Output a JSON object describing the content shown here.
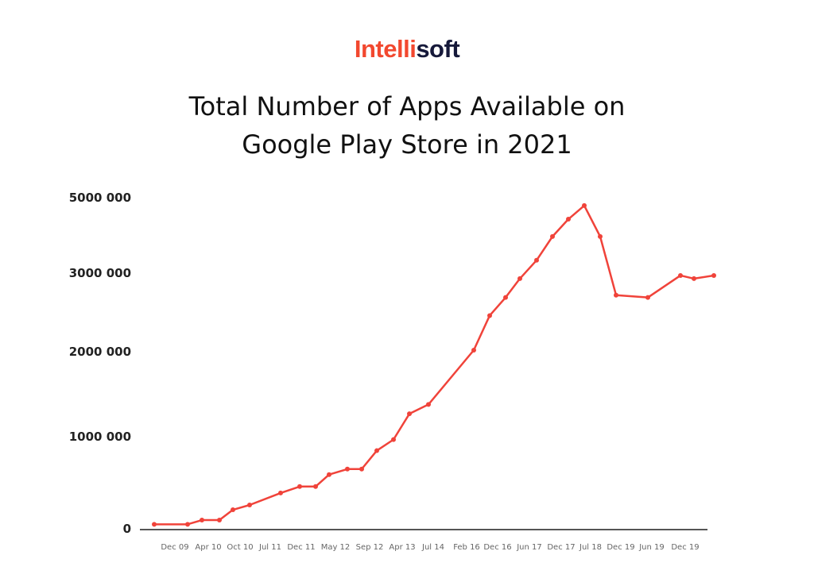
{
  "logo": {
    "part1": "Intelli",
    "part2": "soft",
    "colors": {
      "part1": "#f2482f",
      "part2": "#16193a"
    }
  },
  "chart_data": {
    "type": "line",
    "title": "Total Number of Apps Available on Google Play Store in 2021",
    "title_lines": [
      "Total Number of Apps Available on",
      "Google Play Store in 2021"
    ],
    "xlabel": "",
    "ylabel": "",
    "grid": false,
    "legend": "none",
    "line_color": "#f0433a",
    "x_tick_labels": [
      "Dec 09",
      "Apr 10",
      "Oct 10",
      "Jul 11",
      "Dec 11",
      "May 12",
      "Sep 12",
      "Apr 13",
      "Jul 14",
      "Feb 16",
      "Dec 16",
      "Jun 17",
      "Dec 17",
      "Jul 18",
      "Dec 19",
      "Jun 19",
      "Dec 19"
    ],
    "y_ticks": [
      {
        "value": 0,
        "label": "0"
      },
      {
        "value": 1000000,
        "label": "1000 000"
      },
      {
        "value": 2000000,
        "label": "2000 000"
      },
      {
        "value": 3000000,
        "label": "3000 000"
      },
      {
        "value": 5000000,
        "label": "5000 000"
      }
    ],
    "series": [
      {
        "values": [
          40000,
          40000,
          86000,
          86000,
          198000,
          250000,
          380000,
          450000,
          450000,
          580000,
          640000,
          640000,
          840000,
          960000,
          1260000,
          1370000,
          2010000,
          2450000,
          2680000,
          2920000,
          3320000,
          3950000,
          4410000,
          4770000,
          3950000,
          2710000,
          2680000,
          2960000,
          2920000,
          2960000
        ]
      }
    ]
  }
}
